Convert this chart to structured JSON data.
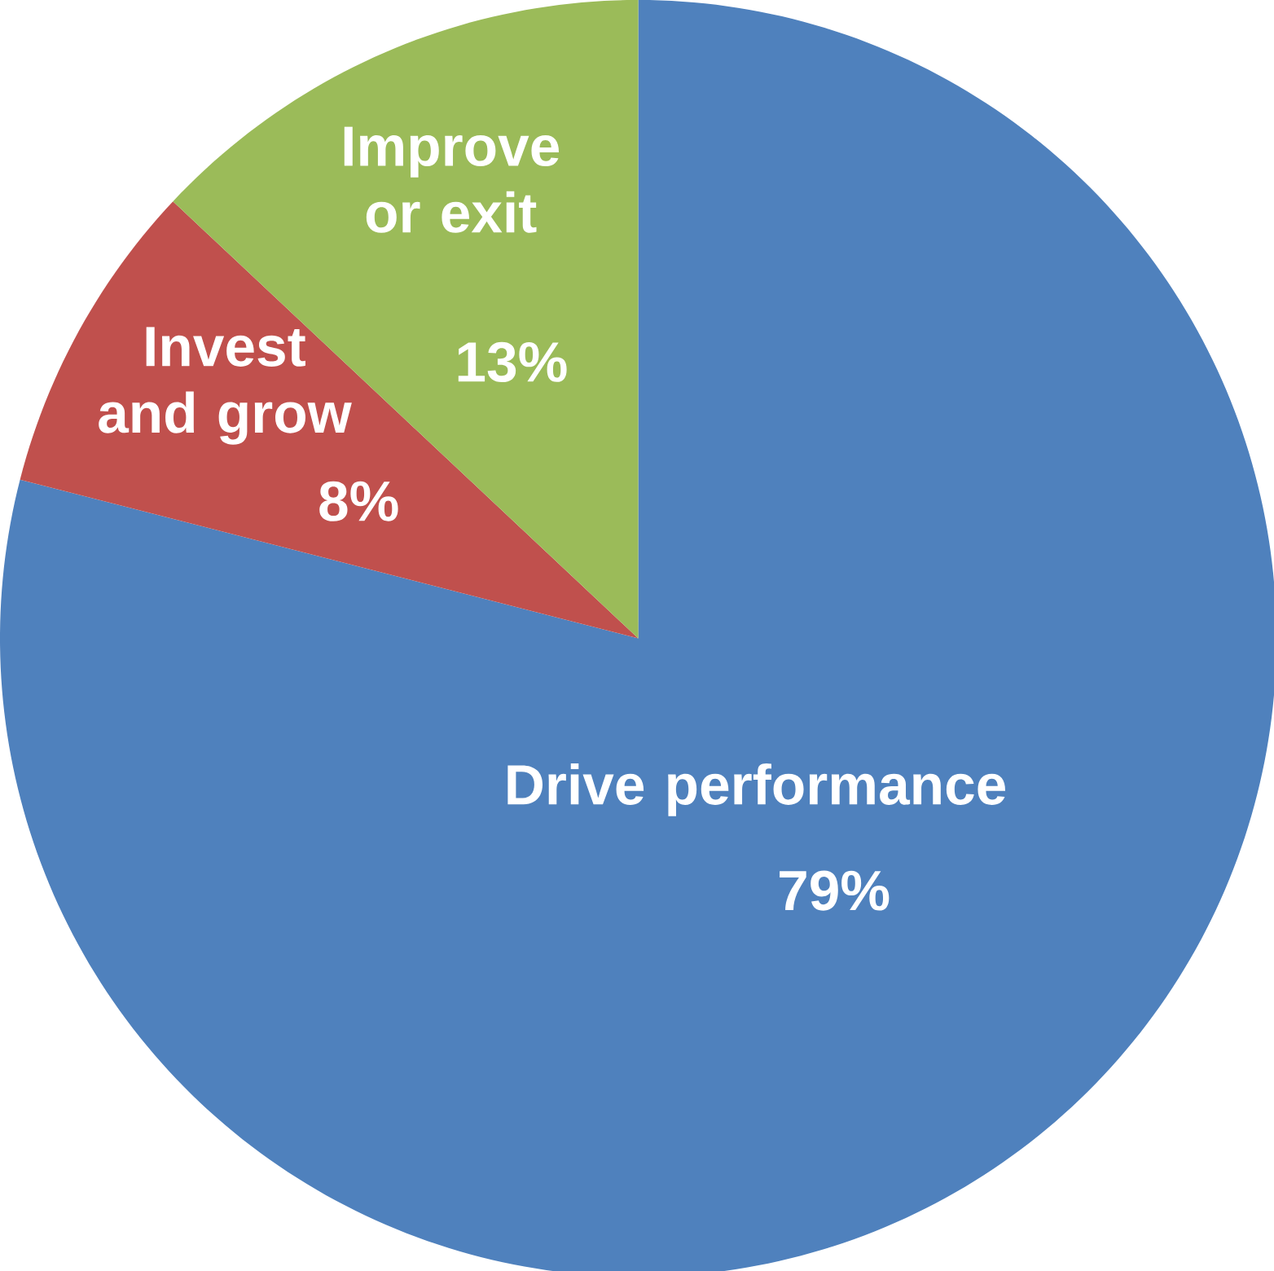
{
  "chart_data": {
    "type": "pie",
    "categories": [
      "Drive performance",
      "Invest and grow",
      "Improve or exit"
    ],
    "values": [
      79,
      8,
      13
    ],
    "value_labels": [
      "79%",
      "8%",
      "13%"
    ],
    "colors": [
      "#4f81bd",
      "#c0504d",
      "#9bbb59"
    ]
  }
}
